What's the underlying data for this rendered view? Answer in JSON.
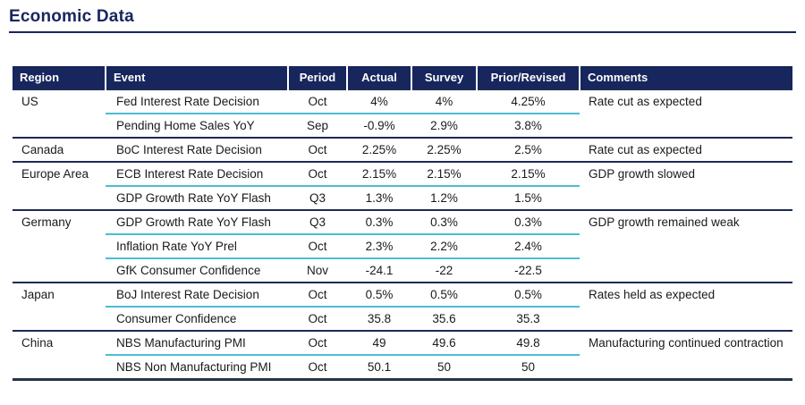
{
  "page": {
    "title": "Economic Data"
  },
  "colors": {
    "navy": "#17265d",
    "teal_separator": "#4cbcd4",
    "bottom_rule": "#25334a"
  },
  "table": {
    "columns": [
      "Region",
      "Event",
      "Period",
      "Actual",
      "Survey",
      "Prior/Revised",
      "Comments"
    ],
    "groups": [
      {
        "region": "US",
        "comment": "Rate cut as expected",
        "rows": [
          {
            "event": "Fed Interest Rate Decision",
            "period": "Oct",
            "actual": "4%",
            "survey": "4%",
            "prior": "4.25%"
          },
          {
            "event": "Pending Home Sales YoY",
            "period": "Sep",
            "actual": "-0.9%",
            "survey": "2.9%",
            "prior": "3.8%"
          }
        ]
      },
      {
        "region": "Canada",
        "comment": "Rate cut as expected",
        "rows": [
          {
            "event": "BoC Interest Rate Decision",
            "period": "Oct",
            "actual": "2.25%",
            "survey": "2.25%",
            "prior": "2.5%"
          }
        ]
      },
      {
        "region": "Europe Area",
        "comment": "GDP growth slowed",
        "rows": [
          {
            "event": "ECB Interest Rate Decision",
            "period": "Oct",
            "actual": "2.15%",
            "survey": "2.15%",
            "prior": "2.15%"
          },
          {
            "event": "GDP Growth Rate YoY Flash",
            "period": "Q3",
            "actual": "1.3%",
            "survey": "1.2%",
            "prior": "1.5%"
          }
        ]
      },
      {
        "region": "Germany",
        "comment": "GDP growth remained weak",
        "rows": [
          {
            "event": "GDP Growth Rate YoY Flash",
            "period": "Q3",
            "actual": "0.3%",
            "survey": "0.3%",
            "prior": "0.3%"
          },
          {
            "event": "Inflation Rate YoY Prel",
            "period": "Oct",
            "actual": "2.3%",
            "survey": "2.2%",
            "prior": "2.4%"
          },
          {
            "event": "GfK Consumer Confidence",
            "period": "Nov",
            "actual": "-24.1",
            "survey": "-22",
            "prior": "-22.5"
          }
        ]
      },
      {
        "region": "Japan",
        "comment": "Rates held as expected",
        "rows": [
          {
            "event": "BoJ Interest Rate Decision",
            "period": "Oct",
            "actual": "0.5%",
            "survey": "0.5%",
            "prior": "0.5%"
          },
          {
            "event": "Consumer Confidence",
            "period": "Oct",
            "actual": "35.8",
            "survey": "35.6",
            "prior": "35.3"
          }
        ]
      },
      {
        "region": "China",
        "comment": "Manufacturing continued contraction",
        "rows": [
          {
            "event": "NBS Manufacturing PMI",
            "period": "Oct",
            "actual": "49",
            "survey": "49.6",
            "prior": "49.8"
          },
          {
            "event": "NBS Non Manufacturing PMI",
            "period": "Oct",
            "actual": "50.1",
            "survey": "50",
            "prior": "50"
          }
        ]
      }
    ]
  },
  "chart_data": {
    "type": "table",
    "title": "Economic Data",
    "columns": [
      "Region",
      "Event",
      "Period",
      "Actual",
      "Survey",
      "Prior/Revised",
      "Comments"
    ],
    "rows": [
      [
        "US",
        "Fed Interest Rate Decision",
        "Oct",
        "4%",
        "4%",
        "4.25%",
        "Rate cut as expected"
      ],
      [
        "US",
        "Pending Home Sales YoY",
        "Sep",
        "-0.9%",
        "2.9%",
        "3.8%",
        ""
      ],
      [
        "Canada",
        "BoC Interest Rate Decision",
        "Oct",
        "2.25%",
        "2.25%",
        "2.5%",
        "Rate cut as expected"
      ],
      [
        "Europe Area",
        "ECB Interest Rate Decision",
        "Oct",
        "2.15%",
        "2.15%",
        "2.15%",
        "GDP growth slowed"
      ],
      [
        "Europe Area",
        "GDP Growth Rate YoY Flash",
        "Q3",
        "1.3%",
        "1.2%",
        "1.5%",
        ""
      ],
      [
        "Germany",
        "GDP Growth Rate YoY Flash",
        "Q3",
        "0.3%",
        "0.3%",
        "0.3%",
        "GDP growth remained weak"
      ],
      [
        "Germany",
        "Inflation Rate YoY Prel",
        "Oct",
        "2.3%",
        "2.2%",
        "2.4%",
        ""
      ],
      [
        "Germany",
        "GfK Consumer Confidence",
        "Nov",
        "-24.1",
        "-22",
        "-22.5",
        ""
      ],
      [
        "Japan",
        "BoJ Interest Rate Decision",
        "Oct",
        "0.5%",
        "0.5%",
        "0.5%",
        "Rates held as expected"
      ],
      [
        "Japan",
        "Consumer Confidence",
        "Oct",
        "35.8",
        "35.6",
        "35.3",
        ""
      ],
      [
        "China",
        "NBS Manufacturing PMI",
        "Oct",
        "49",
        "49.6",
        "49.8",
        "Manufacturing continued contraction"
      ],
      [
        "China",
        "NBS Non Manufacturing PMI",
        "Oct",
        "50.1",
        "50",
        "50",
        ""
      ]
    ]
  }
}
